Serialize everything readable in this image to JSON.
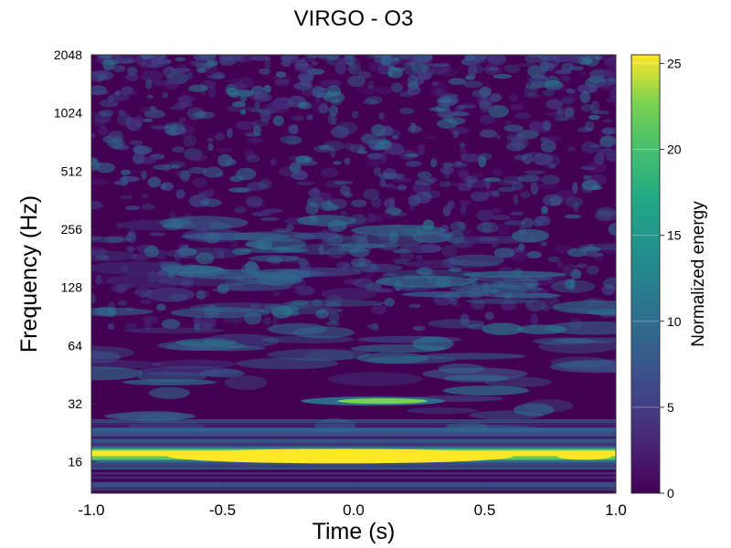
{
  "chart_data": {
    "type": "heatmap",
    "title": "VIRGO - O3",
    "xlabel": "Time (s)",
    "ylabel": "Frequency (Hz)",
    "xlim": [
      -1.0,
      1.0
    ],
    "x_ticks": [
      -1.0,
      -0.5,
      0.0,
      0.5,
      1.0
    ],
    "x_tick_labels": [
      "-1.0",
      "-0.5",
      "0.0",
      "0.5",
      "1.0"
    ],
    "y_scale": "log2",
    "ylim": [
      11,
      2048
    ],
    "y_ticks": [
      16,
      32,
      64,
      128,
      256,
      512,
      1024,
      2048
    ],
    "y_tick_labels": [
      "16",
      "32",
      "64",
      "128",
      "256",
      "512",
      "1024",
      "2048"
    ],
    "colorbar": {
      "label": "Normalized energy",
      "range": [
        0,
        25.5
      ],
      "ticks": [
        0,
        5,
        10,
        15,
        20,
        25
      ],
      "tick_labels": [
        "0",
        "5",
        "10",
        "15",
        "20",
        "25"
      ],
      "colormap": "viridis"
    },
    "features": [
      {
        "t_start": -1.0,
        "t_end": 1.0,
        "f_hz": 17.5,
        "peak_energy": 25.5
      },
      {
        "t_start": -0.2,
        "t_end": 0.35,
        "f_hz": 33,
        "peak_energy": 16
      },
      {
        "t_start": -1.0,
        "t_end": 1.0,
        "f_hz": 26,
        "peak_energy": 8
      }
    ],
    "grid": false
  }
}
